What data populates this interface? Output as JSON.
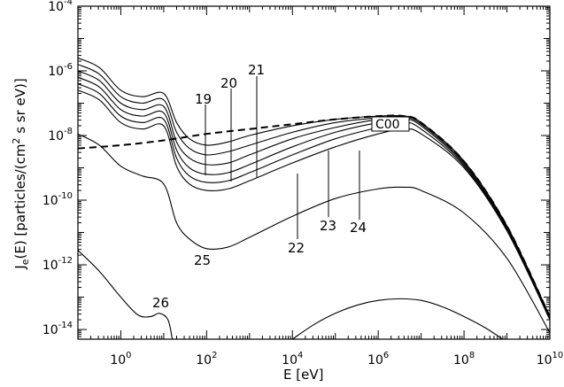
{
  "chart_data": {
    "type": "line",
    "title": "",
    "xlabel": "E [eV]",
    "ylabel_parts": [
      "J",
      "e",
      "(E) [particles/(cm",
      "2",
      " s sr eV)]"
    ],
    "x_scale": "log",
    "y_scale": "log",
    "xlim_log10": [
      -1,
      10
    ],
    "ylim_log10": [
      -14.3,
      -4
    ],
    "grid": false,
    "legend": "none",
    "x_ticks": [
      {
        "base": "10",
        "exp": "0",
        "log10": 0
      },
      {
        "base": "10",
        "exp": "2",
        "log10": 2
      },
      {
        "base": "10",
        "exp": "4",
        "log10": 4
      },
      {
        "base": "10",
        "exp": "6",
        "log10": 6
      },
      {
        "base": "10",
        "exp": "8",
        "log10": 8
      },
      {
        "base": "10",
        "exp": "10",
        "log10": 10
      }
    ],
    "y_ticks": [
      {
        "base": "10",
        "exp": "-4",
        "log10": -4
      },
      {
        "base": "10",
        "exp": "-6",
        "log10": -6
      },
      {
        "base": "10",
        "exp": "-8",
        "log10": -8
      },
      {
        "base": "10",
        "exp": "-10",
        "log10": -10
      },
      {
        "base": "10",
        "exp": "-12",
        "log10": -12
      },
      {
        "base": "10",
        "exp": "-14",
        "log10": -14
      }
    ],
    "series": [
      {
        "label": "C00",
        "style": "dashed",
        "points_log10": [
          [
            -1,
            -8.4
          ],
          [
            0,
            -8.3
          ],
          [
            1,
            -8.15
          ],
          [
            2,
            -7.95
          ],
          [
            3,
            -7.8
          ],
          [
            4,
            -7.65
          ],
          [
            5,
            -7.5
          ],
          [
            6,
            -7.4
          ],
          [
            6.6,
            -7.4
          ],
          [
            7,
            -7.6
          ],
          [
            8,
            -8.8
          ],
          [
            9,
            -10.8
          ],
          [
            10,
            -13.6
          ]
        ]
      },
      {
        "label": "19",
        "style": "solid",
        "points_log10": [
          [
            -1,
            -5.6
          ],
          [
            -0.5,
            -5.9
          ],
          [
            0,
            -6.6
          ],
          [
            0.5,
            -6.8
          ],
          [
            1,
            -6.7
          ],
          [
            1.3,
            -7.6
          ],
          [
            1.6,
            -8.1
          ],
          [
            2,
            -8.3
          ],
          [
            2.5,
            -8.2
          ],
          [
            3,
            -8.0
          ],
          [
            4,
            -7.7
          ],
          [
            5,
            -7.5
          ],
          [
            6,
            -7.4
          ],
          [
            6.6,
            -7.4
          ],
          [
            7,
            -7.6
          ],
          [
            8,
            -8.8
          ],
          [
            9,
            -10.8
          ],
          [
            10,
            -13.6
          ]
        ]
      },
      {
        "label": "20",
        "style": "solid",
        "points_log10": [
          [
            -1,
            -5.8
          ],
          [
            -0.5,
            -6.1
          ],
          [
            0,
            -6.8
          ],
          [
            0.5,
            -7.0
          ],
          [
            1,
            -6.9
          ],
          [
            1.3,
            -7.9
          ],
          [
            1.6,
            -8.4
          ],
          [
            2,
            -8.6
          ],
          [
            2.5,
            -8.5
          ],
          [
            3,
            -8.3
          ],
          [
            4,
            -7.9
          ],
          [
            5,
            -7.6
          ],
          [
            6,
            -7.45
          ],
          [
            6.6,
            -7.4
          ],
          [
            7,
            -7.6
          ],
          [
            8,
            -8.8
          ],
          [
            9,
            -10.8
          ],
          [
            10,
            -13.6
          ]
        ]
      },
      {
        "label": "21",
        "style": "solid",
        "points_log10": [
          [
            -1,
            -6.0
          ],
          [
            -0.5,
            -6.3
          ],
          [
            0,
            -7.0
          ],
          [
            0.5,
            -7.2
          ],
          [
            1,
            -7.1
          ],
          [
            1.3,
            -8.2
          ],
          [
            1.6,
            -8.7
          ],
          [
            2,
            -8.9
          ],
          [
            2.5,
            -8.85
          ],
          [
            3,
            -8.6
          ],
          [
            4,
            -8.1
          ],
          [
            5,
            -7.75
          ],
          [
            6,
            -7.5
          ],
          [
            6.6,
            -7.45
          ],
          [
            7,
            -7.65
          ],
          [
            8,
            -8.85
          ],
          [
            9,
            -10.8
          ],
          [
            10,
            -13.6
          ]
        ]
      },
      {
        "label": "22",
        "style": "solid",
        "points_log10": [
          [
            -1,
            -6.2
          ],
          [
            -0.5,
            -6.5
          ],
          [
            0,
            -7.2
          ],
          [
            0.5,
            -7.4
          ],
          [
            1,
            -7.3
          ],
          [
            1.3,
            -8.45
          ],
          [
            1.6,
            -9.0
          ],
          [
            2,
            -9.2
          ],
          [
            2.5,
            -9.15
          ],
          [
            3,
            -8.9
          ],
          [
            4,
            -8.35
          ],
          [
            5,
            -7.9
          ],
          [
            6,
            -7.6
          ],
          [
            6.6,
            -7.5
          ],
          [
            7,
            -7.7
          ],
          [
            8,
            -8.9
          ],
          [
            9,
            -10.85
          ],
          [
            10,
            -13.6
          ]
        ]
      },
      {
        "label": "23",
        "style": "solid",
        "points_log10": [
          [
            -1,
            -6.4
          ],
          [
            -0.5,
            -6.7
          ],
          [
            0,
            -7.4
          ],
          [
            0.5,
            -7.6
          ],
          [
            1,
            -7.5
          ],
          [
            1.3,
            -8.7
          ],
          [
            1.6,
            -9.25
          ],
          [
            2,
            -9.45
          ],
          [
            2.5,
            -9.4
          ],
          [
            3,
            -9.15
          ],
          [
            4,
            -8.6
          ],
          [
            5,
            -8.1
          ],
          [
            6,
            -7.75
          ],
          [
            6.6,
            -7.6
          ],
          [
            7,
            -7.8
          ],
          [
            8,
            -8.95
          ],
          [
            9,
            -10.9
          ],
          [
            10,
            -13.65
          ]
        ]
      },
      {
        "label": "24",
        "style": "solid",
        "points_log10": [
          [
            -1,
            -6.6
          ],
          [
            -0.5,
            -6.9
          ],
          [
            0,
            -7.6
          ],
          [
            0.5,
            -7.8
          ],
          [
            1,
            -7.7
          ],
          [
            1.3,
            -8.95
          ],
          [
            1.6,
            -9.5
          ],
          [
            2,
            -9.7
          ],
          [
            2.5,
            -9.65
          ],
          [
            3,
            -9.4
          ],
          [
            4,
            -8.85
          ],
          [
            5,
            -8.35
          ],
          [
            6,
            -7.95
          ],
          [
            6.6,
            -7.8
          ],
          [
            7,
            -7.95
          ],
          [
            8,
            -9.0
          ],
          [
            9,
            -10.95
          ],
          [
            10,
            -13.7
          ]
        ]
      },
      {
        "label": "25",
        "style": "solid",
        "points_log10": [
          [
            -1,
            -7.95
          ],
          [
            -0.5,
            -8.3
          ],
          [
            0,
            -8.95
          ],
          [
            0.5,
            -9.25
          ],
          [
            1,
            -9.5
          ],
          [
            1.3,
            -10.7
          ],
          [
            1.6,
            -11.2
          ],
          [
            2,
            -11.5
          ],
          [
            2.5,
            -11.45
          ],
          [
            3,
            -11.15
          ],
          [
            4,
            -10.5
          ],
          [
            5,
            -9.95
          ],
          [
            6,
            -9.65
          ],
          [
            6.6,
            -9.6
          ],
          [
            7,
            -9.7
          ],
          [
            8,
            -10.4
          ],
          [
            9,
            -11.8
          ],
          [
            10,
            -14.1
          ]
        ]
      },
      {
        "label": "26",
        "style": "solid",
        "points_log10": [
          [
            -1,
            -11.55
          ],
          [
            -0.5,
            -12.2
          ],
          [
            0,
            -13.0
          ],
          [
            0.4,
            -13.55
          ],
          [
            0.7,
            -13.6
          ],
          [
            0.9,
            -13.5
          ],
          [
            1.1,
            -13.7
          ],
          [
            1.2,
            -14.3
          ]
        ]
      },
      {
        "label": "",
        "style": "solid",
        "points_log10": [
          [
            4,
            -14.3
          ],
          [
            4.5,
            -13.85
          ],
          [
            5,
            -13.5
          ],
          [
            5.5,
            -13.25
          ],
          [
            6,
            -13.1
          ],
          [
            6.5,
            -13.05
          ],
          [
            7,
            -13.1
          ],
          [
            7.5,
            -13.3
          ],
          [
            8,
            -13.6
          ],
          [
            8.5,
            -13.95
          ],
          [
            8.9,
            -14.3
          ]
        ]
      }
    ],
    "labels": {
      "c00": "C00",
      "l19": "19",
      "l20": "20",
      "l21": "21",
      "l22": "22",
      "l23": "23",
      "l24": "24",
      "l25": "25",
      "l26": "26"
    }
  }
}
